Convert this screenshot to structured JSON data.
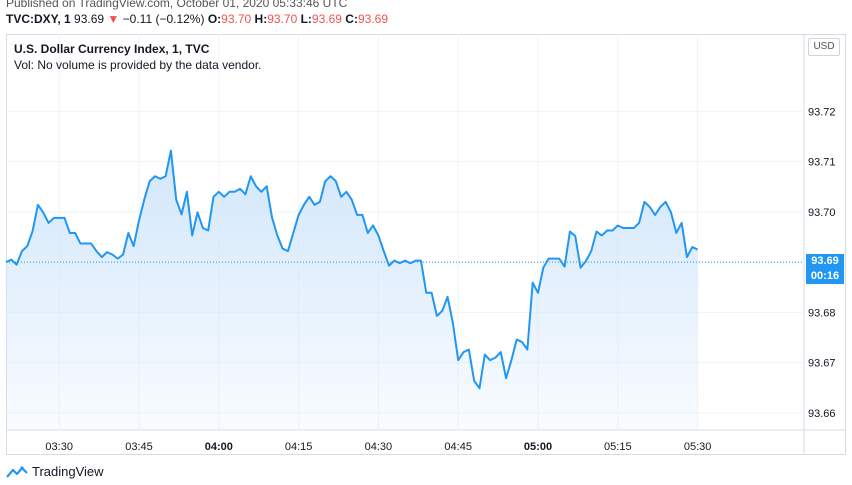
{
  "header": {
    "published": "Published on TradingView.com, October 01, 2020 05:33:46 UTC",
    "symbol": "TVC:DXY, 1",
    "last": "93.69",
    "change": "−0.11 (−0.12%)",
    "o_label": "O:",
    "o_value": "93.70",
    "h_label": "H:",
    "h_value": "93.70",
    "l_label": "L:",
    "l_value": "93.69",
    "c_label": "C:",
    "c_value": "93.69"
  },
  "legend": {
    "title": "U.S. Dollar Currency Index, 1, TVC",
    "volume_note": "Vol: No volume is provided by the data vendor."
  },
  "currency_button": "USD",
  "last_price_tag": "93.69",
  "countdown_tag": "00:16",
  "footer": {
    "brand": "TradingView"
  },
  "colors": {
    "line": "#2196f3",
    "fill_top": "#cfe5fb",
    "down": "#ef5350"
  },
  "chart_data": {
    "type": "area",
    "title": "U.S. Dollar Currency Index, 1, TVC",
    "x_ticks": [
      {
        "label": "03:30",
        "minute": 210,
        "bold": false
      },
      {
        "label": "03:45",
        "minute": 225,
        "bold": false
      },
      {
        "label": "04:00",
        "minute": 240,
        "bold": true
      },
      {
        "label": "04:15",
        "minute": 255,
        "bold": false
      },
      {
        "label": "04:30",
        "minute": 270,
        "bold": false
      },
      {
        "label": "04:45",
        "minute": 285,
        "bold": false
      },
      {
        "label": "05:00",
        "minute": 300,
        "bold": true
      },
      {
        "label": "05:15",
        "minute": 315,
        "bold": false
      },
      {
        "label": "05:30",
        "minute": 330,
        "bold": false
      }
    ],
    "y_ticks": [
      "93.72",
      "93.71",
      "93.70",
      "93.69",
      "93.68",
      "93.67",
      "93.66"
    ],
    "x_range_minutes": [
      200,
      350
    ],
    "y_range": [
      93.6566,
      93.7354
    ],
    "last_value": 93.69,
    "series": [
      {
        "minute_start": 200,
        "values": [
          93.69,
          93.6905,
          93.6895,
          93.6922,
          93.6932,
          93.6962,
          93.7014,
          93.6999,
          93.6978,
          93.6988,
          93.6988,
          93.6988,
          93.6958,
          93.6958,
          93.6937,
          93.6937,
          93.6937,
          93.6922,
          93.691,
          93.692,
          93.6915,
          93.6907,
          93.6915,
          93.6958,
          93.6932,
          93.6983,
          93.7025,
          93.7061,
          93.7071,
          93.7066,
          93.7071,
          93.7122,
          93.7024,
          93.6995,
          93.704,
          93.6953,
          93.6999,
          93.6968,
          93.6963,
          93.703,
          93.704,
          93.703,
          93.704,
          93.704,
          93.7046,
          93.7035,
          93.7071,
          93.7051,
          93.704,
          93.7051,
          93.6989,
          93.6953,
          93.6927,
          93.6922,
          93.6958,
          93.6994,
          93.7014,
          93.703,
          93.7014,
          93.702,
          93.7061,
          93.7071,
          93.7061,
          93.703,
          93.704,
          93.7024,
          93.6994,
          93.6994,
          93.6958,
          93.6973,
          93.6953,
          93.6922,
          93.6893,
          93.6903,
          93.6898,
          93.6903,
          93.6898,
          93.6903,
          93.6903,
          93.6839,
          93.6839,
          93.6793,
          93.6803,
          93.6831,
          93.6779,
          93.6705,
          93.6721,
          93.6726,
          93.6664,
          93.6649,
          93.6716,
          93.6705,
          93.671,
          93.6721,
          93.6669,
          93.6705,
          93.6746,
          93.6741,
          93.6726,
          93.6859,
          93.6839,
          93.6889,
          93.6907,
          93.6907,
          93.6907,
          93.6891,
          93.6961,
          93.6952,
          93.6889,
          93.6902,
          93.6922,
          93.6961,
          93.6953,
          93.6963,
          93.6963,
          93.6973,
          93.6968,
          93.6968,
          93.6968,
          93.6978,
          93.702,
          93.701,
          93.6994,
          93.701,
          93.702,
          93.6999,
          93.6958,
          93.6978,
          93.691,
          93.693,
          93.6925
        ]
      }
    ]
  }
}
